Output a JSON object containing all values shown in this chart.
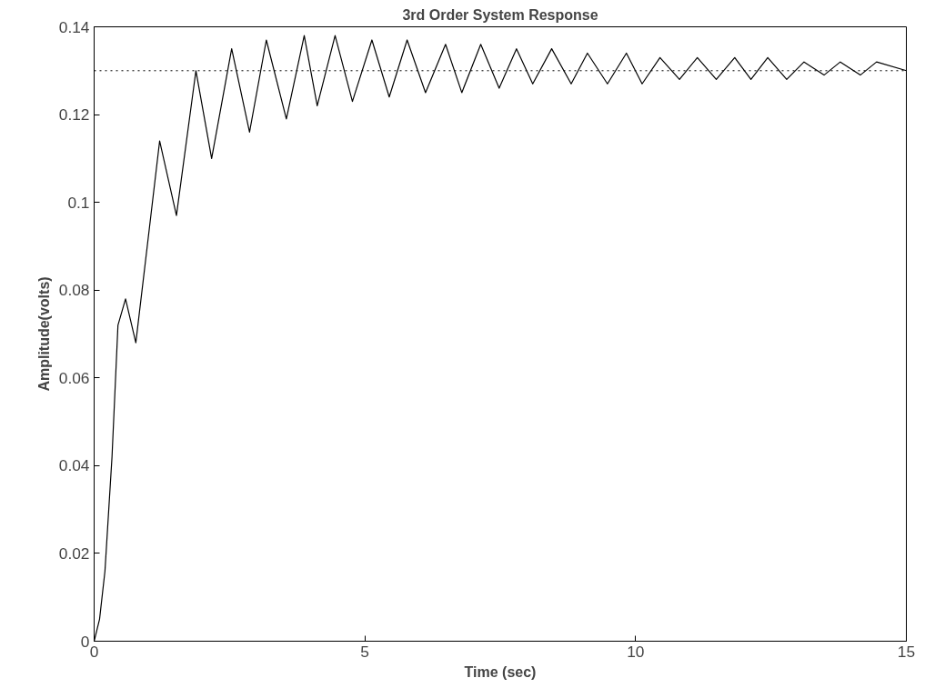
{
  "chart_data": {
    "type": "line",
    "title": "3rd Order System Response",
    "xlabel": "Time (sec)",
    "ylabel": "Amplitude(volts)",
    "xlim": [
      0,
      15
    ],
    "ylim": [
      0,
      0.14
    ],
    "xticks": [
      0,
      5,
      10,
      15
    ],
    "yticks": [
      0,
      0.02,
      0.04,
      0.06,
      0.08,
      0.1,
      0.12,
      0.14
    ],
    "grid": false,
    "line_style": "solid",
    "marker": "none",
    "series": [
      {
        "color": "#000000",
        "x": [
          0,
          0.1,
          0.2,
          0.33,
          0.44,
          0.58,
          0.77,
          1.0,
          1.21,
          1.52,
          1.88,
          2.17,
          2.54,
          2.87,
          3.18,
          3.55,
          3.88,
          4.12,
          4.45,
          4.77,
          5.13,
          5.45,
          5.78,
          6.12,
          6.49,
          6.79,
          7.14,
          7.48,
          7.8,
          8.1,
          8.45,
          8.81,
          9.11,
          9.48,
          9.83,
          10.12,
          10.45,
          10.81,
          11.14,
          11.49,
          11.83,
          12.13,
          12.44,
          12.79,
          13.11,
          13.48,
          13.78,
          14.15,
          14.45,
          15
        ],
        "values": [
          0,
          0.005,
          0.016,
          0.042,
          0.072,
          0.078,
          0.068,
          0.092,
          0.114,
          0.097,
          0.13,
          0.11,
          0.135,
          0.116,
          0.137,
          0.119,
          0.138,
          0.122,
          0.138,
          0.123,
          0.137,
          0.124,
          0.137,
          0.125,
          0.136,
          0.125,
          0.136,
          0.126,
          0.135,
          0.127,
          0.135,
          0.127,
          0.134,
          0.127,
          0.134,
          0.127,
          0.133,
          0.128,
          0.133,
          0.128,
          0.133,
          0.128,
          0.133,
          0.128,
          0.132,
          0.129,
          0.132,
          0.129,
          0.132,
          0.13
        ]
      }
    ],
    "ref_lines": [
      {
        "axis": "y",
        "value": 0.13,
        "label": null,
        "color": "#000000",
        "line_style": "dotted"
      }
    ]
  }
}
